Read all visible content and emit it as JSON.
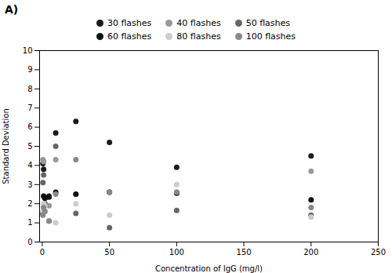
{
  "chart_data": {
    "type": "scatter",
    "title": "A)",
    "xlabel": "Concentration of IgG (mg/l)",
    "ylabel": "Standard Deviation",
    "xlim": [
      -2,
      250
    ],
    "ylim": [
      0,
      10
    ],
    "xticks": [
      0,
      50,
      100,
      150,
      200,
      250
    ],
    "yticks": [
      0,
      1,
      2,
      3,
      4,
      5,
      6,
      7,
      8,
      9,
      10
    ],
    "grid": false,
    "legend": "top",
    "marker": "circle",
    "series": [
      {
        "name": "30 flashes",
        "color": "#1a1a1a",
        "values": [
          [
            0.5,
            4.1
          ],
          [
            1,
            3.8
          ],
          [
            2,
            2.3
          ],
          [
            5,
            2.4
          ],
          [
            10,
            5.7
          ],
          [
            25,
            6.3
          ],
          [
            50,
            5.2
          ],
          [
            100,
            3.9
          ],
          [
            200,
            4.5
          ]
        ]
      },
      {
        "name": "40 flashes",
        "color": "#999999",
        "values": [
          [
            0.5,
            4.3
          ],
          [
            1,
            4.2
          ],
          [
            2,
            2.0
          ],
          [
            5,
            1.9
          ],
          [
            10,
            4.3
          ],
          [
            25,
            2.5
          ],
          [
            50,
            2.6
          ],
          [
            100,
            2.6
          ],
          [
            200,
            3.7
          ]
        ]
      },
      {
        "name": "50 flashes",
        "color": "#666666",
        "values": [
          [
            0.5,
            3.1
          ],
          [
            1,
            3.5
          ],
          [
            2,
            2.0
          ],
          [
            5,
            1.1
          ],
          [
            10,
            5.0
          ],
          [
            25,
            1.5
          ],
          [
            50,
            0.75
          ],
          [
            100,
            1.65
          ],
          [
            200,
            1.4
          ]
        ]
      },
      {
        "name": "60 flashes",
        "color": "#111111",
        "values": [
          [
            0.5,
            1.5
          ],
          [
            1,
            2.4
          ],
          [
            2,
            2.3
          ],
          [
            5,
            2.35
          ],
          [
            10,
            2.6
          ],
          [
            25,
            2.5
          ],
          [
            50,
            2.6
          ],
          [
            100,
            2.55
          ],
          [
            200,
            2.2
          ]
        ]
      },
      {
        "name": "80 flashes",
        "color": "#cccccc",
        "values": [
          [
            0.5,
            1.6
          ],
          [
            1,
            2.0
          ],
          [
            2,
            1.9
          ],
          [
            5,
            1.1
          ],
          [
            10,
            1.0
          ],
          [
            25,
            2.0
          ],
          [
            50,
            1.4
          ],
          [
            100,
            3.0
          ],
          [
            200,
            1.3
          ]
        ]
      },
      {
        "name": "100 flashes",
        "color": "#888888",
        "values": [
          [
            0.5,
            1.4
          ],
          [
            1,
            1.8
          ],
          [
            2,
            1.6
          ],
          [
            5,
            1.1
          ],
          [
            10,
            2.5
          ],
          [
            25,
            4.3
          ],
          [
            50,
            2.6
          ],
          [
            100,
            2.6
          ],
          [
            200,
            1.8
          ]
        ]
      }
    ]
  }
}
